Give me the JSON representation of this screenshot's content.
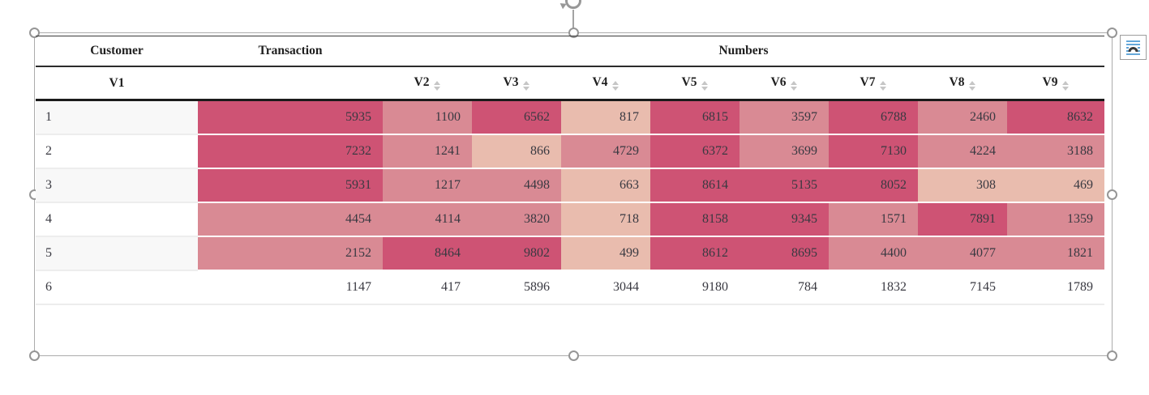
{
  "icons": {
    "layout_options": "text-wrap-arch",
    "sort": "up-down-arrows",
    "rotate": "rotate-arrow",
    "selection_handle": "circle-handle"
  },
  "table": {
    "colors": {
      "dark": "#ce5374",
      "medium": "#d98a94",
      "light": "#e9bcae",
      "stripe": "#f8f8f8",
      "header_line": "#1b1b1b"
    },
    "groups": [
      {
        "label": "Customer",
        "span": 1
      },
      {
        "label": "Transaction",
        "span": 1
      },
      {
        "label": "Numbers",
        "span": 8
      }
    ],
    "columns": [
      {
        "label": "V1",
        "sortable": false
      },
      {
        "label": "",
        "sortable": false
      },
      {
        "label": "V2",
        "sortable": true
      },
      {
        "label": "V3",
        "sortable": true
      },
      {
        "label": "V4",
        "sortable": true
      },
      {
        "label": "V5",
        "sortable": true
      },
      {
        "label": "V6",
        "sortable": true
      },
      {
        "label": "V7",
        "sortable": true
      },
      {
        "label": "V8",
        "sortable": true
      },
      {
        "label": "V9",
        "sortable": true
      }
    ],
    "rows": [
      {
        "cells": [
          {
            "v": "1",
            "shade": "id"
          },
          {
            "v": "5935",
            "shade": "dark"
          },
          {
            "v": "1100",
            "shade": "medium"
          },
          {
            "v": "6562",
            "shade": "dark"
          },
          {
            "v": "817",
            "shade": "light"
          },
          {
            "v": "6815",
            "shade": "dark"
          },
          {
            "v": "3597",
            "shade": "medium"
          },
          {
            "v": "6788",
            "shade": "dark"
          },
          {
            "v": "2460",
            "shade": "medium"
          },
          {
            "v": "8632",
            "shade": "dark"
          }
        ]
      },
      {
        "cells": [
          {
            "v": "2",
            "shade": "id"
          },
          {
            "v": "7232",
            "shade": "dark"
          },
          {
            "v": "1241",
            "shade": "medium"
          },
          {
            "v": "866",
            "shade": "light"
          },
          {
            "v": "4729",
            "shade": "medium"
          },
          {
            "v": "6372",
            "shade": "dark"
          },
          {
            "v": "3699",
            "shade": "medium"
          },
          {
            "v": "7130",
            "shade": "dark"
          },
          {
            "v": "4224",
            "shade": "medium"
          },
          {
            "v": "3188",
            "shade": "medium"
          }
        ]
      },
      {
        "cells": [
          {
            "v": "3",
            "shade": "id"
          },
          {
            "v": "5931",
            "shade": "dark"
          },
          {
            "v": "1217",
            "shade": "medium"
          },
          {
            "v": "4498",
            "shade": "medium"
          },
          {
            "v": "663",
            "shade": "light"
          },
          {
            "v": "8614",
            "shade": "dark"
          },
          {
            "v": "5135",
            "shade": "dark"
          },
          {
            "v": "8052",
            "shade": "dark"
          },
          {
            "v": "308",
            "shade": "light"
          },
          {
            "v": "469",
            "shade": "light"
          }
        ]
      },
      {
        "cells": [
          {
            "v": "4",
            "shade": "id"
          },
          {
            "v": "4454",
            "shade": "medium"
          },
          {
            "v": "4114",
            "shade": "medium"
          },
          {
            "v": "3820",
            "shade": "medium"
          },
          {
            "v": "718",
            "shade": "light"
          },
          {
            "v": "8158",
            "shade": "dark"
          },
          {
            "v": "9345",
            "shade": "dark"
          },
          {
            "v": "1571",
            "shade": "medium"
          },
          {
            "v": "7891",
            "shade": "dark"
          },
          {
            "v": "1359",
            "shade": "medium"
          }
        ]
      },
      {
        "cells": [
          {
            "v": "5",
            "shade": "id"
          },
          {
            "v": "2152",
            "shade": "medium"
          },
          {
            "v": "8464",
            "shade": "dark"
          },
          {
            "v": "9802",
            "shade": "dark"
          },
          {
            "v": "499",
            "shade": "light"
          },
          {
            "v": "8612",
            "shade": "dark"
          },
          {
            "v": "8695",
            "shade": "dark"
          },
          {
            "v": "4400",
            "shade": "medium"
          },
          {
            "v": "4077",
            "shade": "medium"
          },
          {
            "v": "1821",
            "shade": "medium"
          }
        ]
      },
      {
        "cells": [
          {
            "v": "6",
            "shade": "id"
          },
          {
            "v": "1147",
            "shade": "plain"
          },
          {
            "v": "417",
            "shade": "plain"
          },
          {
            "v": "5896",
            "shade": "plain"
          },
          {
            "v": "3044",
            "shade": "plain"
          },
          {
            "v": "9180",
            "shade": "plain"
          },
          {
            "v": "784",
            "shade": "plain"
          },
          {
            "v": "1832",
            "shade": "plain"
          },
          {
            "v": "7145",
            "shade": "plain"
          },
          {
            "v": "1789",
            "shade": "plain"
          }
        ]
      }
    ]
  }
}
